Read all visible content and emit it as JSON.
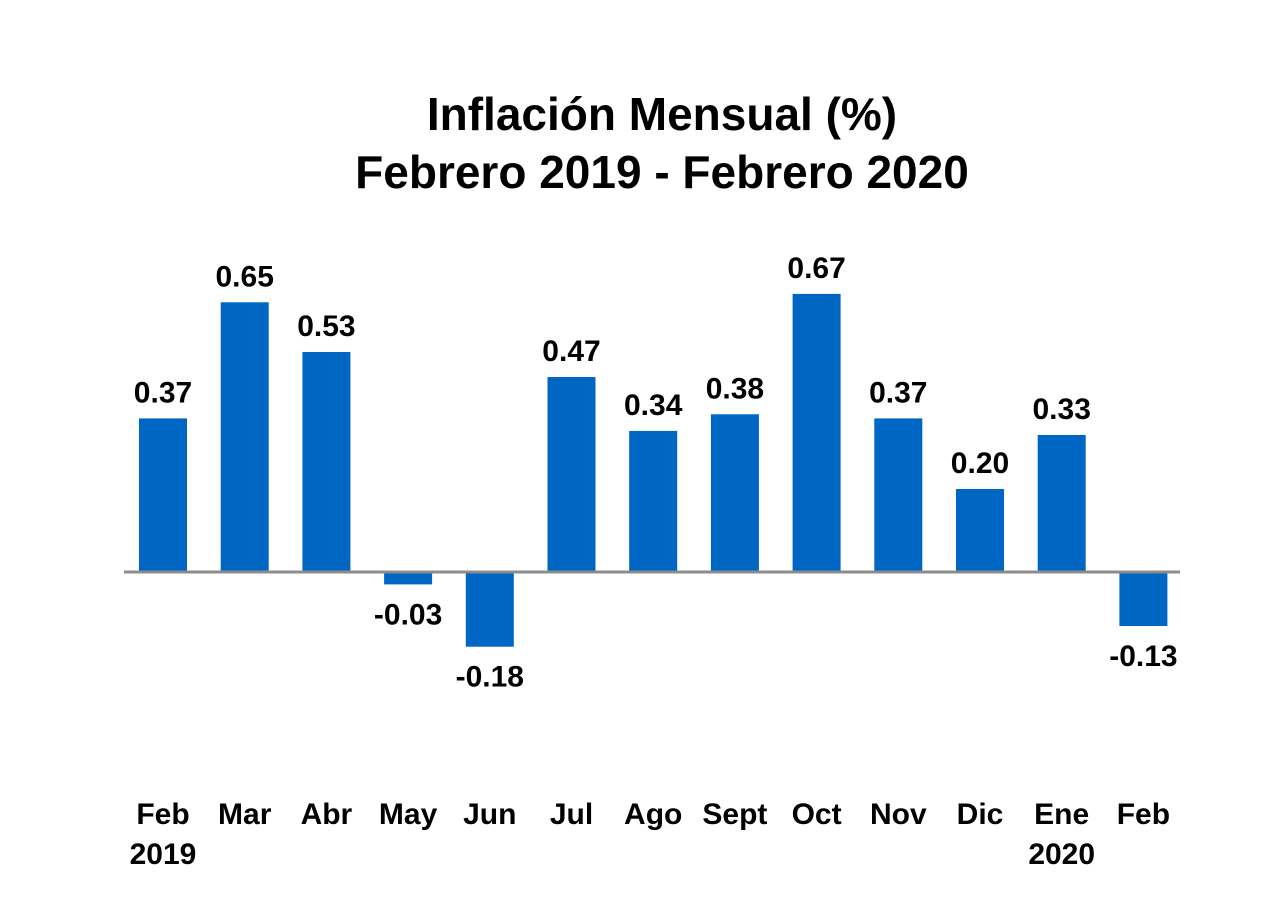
{
  "chart_data": {
    "type": "bar",
    "title": "Inflación Mensual (%)",
    "subtitle": "Febrero 2019 - Febrero 2020",
    "categories": [
      [
        "Feb",
        "2019"
      ],
      [
        "Mar",
        ""
      ],
      [
        "Abr",
        ""
      ],
      [
        "May",
        ""
      ],
      [
        "Jun",
        ""
      ],
      [
        "Jul",
        ""
      ],
      [
        "Ago",
        ""
      ],
      [
        "Sept",
        ""
      ],
      [
        "Oct",
        ""
      ],
      [
        "Nov",
        ""
      ],
      [
        "Dic",
        ""
      ],
      [
        "Ene",
        "2020"
      ],
      [
        "Feb",
        ""
      ]
    ],
    "values": [
      0.37,
      0.65,
      0.53,
      -0.03,
      -0.18,
      0.47,
      0.34,
      0.38,
      0.67,
      0.37,
      0.2,
      0.33,
      -0.13
    ],
    "value_labels": [
      "0.37",
      "0.65",
      "0.53",
      "-0.03",
      "-0.18",
      "0.47",
      "0.34",
      "0.38",
      "0.67",
      "0.37",
      "0.20",
      "0.33",
      "-0.13"
    ],
    "xlabel": "",
    "ylabel": "",
    "ylim": [
      -0.3,
      0.8
    ],
    "grid": false,
    "legend": "none",
    "colors": {
      "bar": "#0066c4",
      "axis": "#8c8c8c",
      "text": "#000000"
    }
  }
}
